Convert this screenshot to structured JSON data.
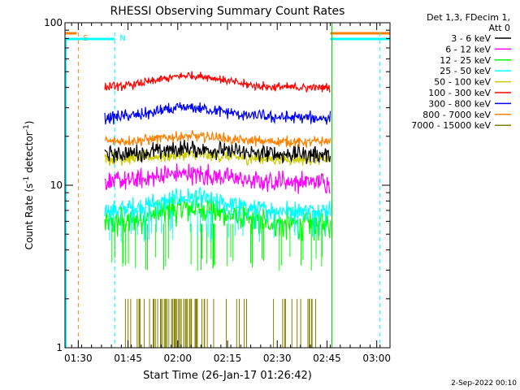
{
  "chart_data": {
    "type": "line",
    "title": "RHESSI Observing Summary Count Rates",
    "xlabel": "Start Time (26-Jan-17 01:26:42)",
    "ylabel_main": "Count Rate (s",
    "ylabel_sup": "-1",
    "ylabel_tail": " detector",
    "ylabel_end": ")",
    "yscale": "log",
    "ylim": [
      1,
      100
    ],
    "xlim": [
      86,
      184
    ],
    "yticks": [
      {
        "v": 1,
        "label": "1"
      },
      {
        "v": 10,
        "label": "10"
      },
      {
        "v": 100,
        "label": "100"
      }
    ],
    "xticks": [
      {
        "v": 90,
        "label": "01:30"
      },
      {
        "v": 105,
        "label": "01:45"
      },
      {
        "v": 120,
        "label": "02:00"
      },
      {
        "v": 135,
        "label": "02:15"
      },
      {
        "v": 150,
        "label": "02:30"
      },
      {
        "v": 165,
        "label": "02:45"
      },
      {
        "v": 180,
        "label": "03:00"
      }
    ],
    "legend_header": [
      "Det 1,3, FDecim 1,",
      "Att 0"
    ],
    "series": [
      {
        "name": "3 - 6 keV",
        "color": "#000000",
        "base": 15.5,
        "noise": 0.1,
        "hump": 0.08
      },
      {
        "name": "6 - 12 keV",
        "color": "#ff00ff",
        "base": 10.5,
        "noise": 0.12,
        "hump": 0.12
      },
      {
        "name": "12 - 25 keV",
        "color": "#00ff00",
        "base": 5.8,
        "noise": 0.18,
        "hump": 0.25
      },
      {
        "name": "25 - 50 keV",
        "color": "#00ffff",
        "base": 7.0,
        "noise": 0.12,
        "hump": 0.18
      },
      {
        "name": "50 - 100 keV",
        "color": "#cccc00",
        "base": 14.5,
        "noise": 0.07,
        "hump": 0.06
      },
      {
        "name": "100 - 300 keV",
        "color": "#ff0000",
        "base": 40.0,
        "noise": 0.05,
        "hump": 0.18
      },
      {
        "name": "300 - 800 keV",
        "color": "#0000ff",
        "base": 26.0,
        "noise": 0.07,
        "hump": 0.15
      },
      {
        "name": "800 - 7000 keV",
        "color": "#ff8000",
        "base": 18.5,
        "noise": 0.06,
        "hump": 0.08
      },
      {
        "name": "7000 - 15000 keV",
        "color": "#808000",
        "base": 1.0,
        "noise": 0.0,
        "hump": 0.0
      }
    ],
    "data_range": [
      98,
      166
    ],
    "flags": [
      {
        "label": "S",
        "color": "#ff8000",
        "x": 90
      },
      {
        "label": "N",
        "color": "#00ffff",
        "x": 101
      }
    ],
    "flag_end_x": [
      166,
      181
    ]
  },
  "footer_date": "2-Sep-2022 00:10"
}
